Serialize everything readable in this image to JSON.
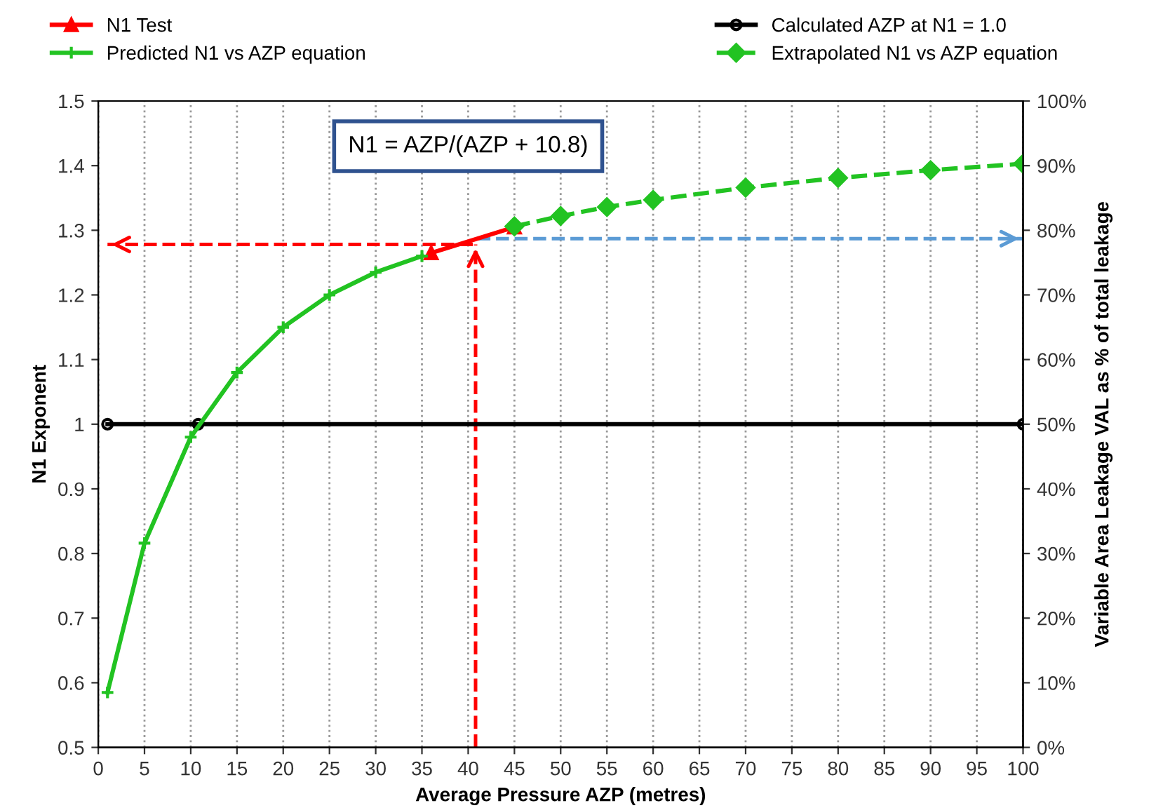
{
  "chart_data": {
    "type": "line",
    "xlabel": "Average Pressure AZP (metres)",
    "ylabel": "N1 Exponent",
    "y2label": "Variable Area Leakage VAL as % of total leakage",
    "xlim": [
      0,
      100
    ],
    "xticks": [
      0,
      5,
      10,
      15,
      20,
      25,
      30,
      35,
      40,
      45,
      50,
      55,
      60,
      65,
      70,
      75,
      80,
      85,
      90,
      95,
      100
    ],
    "ylim": [
      0.5,
      1.5
    ],
    "yticks": [
      0.5,
      0.6,
      0.7,
      0.8,
      0.9,
      1,
      1.1,
      1.2,
      1.3,
      1.4,
      1.5
    ],
    "y2lim": [
      0,
      100
    ],
    "y2ticks": [
      {
        "value": 0,
        "label": "0%"
      },
      {
        "value": 10,
        "label": "10%"
      },
      {
        "value": 20,
        "label": "20%"
      },
      {
        "value": 30,
        "label": "30%"
      },
      {
        "value": 40,
        "label": "40%"
      },
      {
        "value": 50,
        "label": "50%"
      },
      {
        "value": 60,
        "label": "60%"
      },
      {
        "value": 70,
        "label": "70%"
      },
      {
        "value": 80,
        "label": "80%"
      },
      {
        "value": 90,
        "label": "90%"
      },
      {
        "value": 100,
        "label": "100%"
      }
    ],
    "grid": "x",
    "legend": "top",
    "annotations": [
      "N1 = AZP/(AZP + 10.8)"
    ],
    "series": [
      {
        "name": "N1 Test",
        "color": "#ff0000",
        "marker": "triangle",
        "line_style": "solid",
        "x": [
          36,
          45
        ],
        "values": [
          1.265,
          1.305
        ]
      },
      {
        "name": "Calculated AZP at N1 = 1.0",
        "color": "#000000",
        "marker": "circle",
        "line_style": "solid",
        "x": [
          1,
          10.8,
          100
        ],
        "values": [
          1,
          1,
          1
        ]
      },
      {
        "name": "Predicted N1 vs AZP equation",
        "color": "#22c322",
        "marker": "cross",
        "line_style": "solid",
        "x": [
          1,
          5,
          10,
          15,
          20,
          25,
          30,
          35
        ],
        "values": [
          0.585,
          0.816,
          0.98,
          1.08,
          1.15,
          1.2,
          1.235,
          1.26
        ]
      },
      {
        "name": "Extrapolated N1 vs AZP equation",
        "color": "#22c322",
        "marker": "diamond",
        "line_style": "dashed",
        "x": [
          45,
          50,
          55,
          60,
          70,
          80,
          90,
          100
        ],
        "values": [
          1.306,
          1.322,
          1.336,
          1.347,
          1.366,
          1.381,
          1.393,
          1.403
        ]
      },
      {
        "color": "#ff0000",
        "marker": "none",
        "line_style": "dashed",
        "x": [
          40.5,
          1
        ],
        "values": [
          1.278,
          1.278
        ]
      },
      {
        "color": "#ff0000",
        "marker": "none",
        "line_style": "dashed",
        "x": [
          40.8,
          40.8
        ],
        "values": [
          0.5,
          1.278
        ]
      },
      {
        "color": "#5b9bd5",
        "marker": "none",
        "line_style": "dashed",
        "x": [
          41,
          100
        ],
        "values": [
          1.287,
          1.287
        ]
      }
    ]
  }
}
